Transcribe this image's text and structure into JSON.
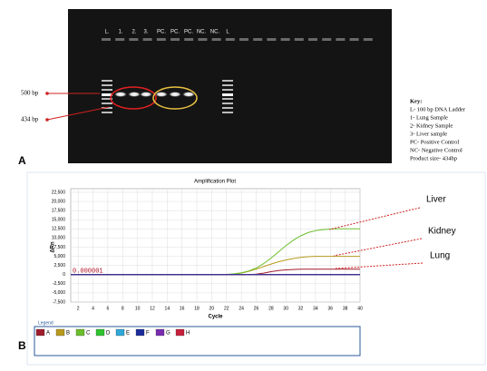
{
  "panel_a": {
    "panel_label": "A",
    "lane_labels": [
      "L.",
      "1.",
      "2.",
      "3.",
      "PC.",
      "PC.",
      "PC.",
      "NC.",
      "NC.",
      "L"
    ],
    "marker_labels": [
      "500 bp",
      "434 bp"
    ],
    "key": [
      "Key:",
      "L- 100 bp DNA Ladder",
      "1- Lung Sample",
      "2- Kidney Sample",
      "3- Liver sample",
      "PC- Positive Control",
      "NC- Negative Control",
      "Product size- 434bp"
    ]
  },
  "panel_b": {
    "panel_label": "B",
    "annotations": [
      "Liver",
      "Kidney",
      "Lung"
    ],
    "legend_title": "Legend"
  },
  "chart_data": {
    "type": "line",
    "title": "Amplification Plot",
    "x_label": "Cycle",
    "y_label": "ΔRn",
    "threshold_label": "0.000001",
    "grid": true,
    "x": [
      1,
      2,
      3,
      4,
      5,
      6,
      7,
      8,
      9,
      10,
      11,
      12,
      13,
      14,
      15,
      16,
      17,
      18,
      19,
      20,
      21,
      22,
      23,
      24,
      25,
      26,
      27,
      28,
      29,
      30,
      31,
      32,
      33,
      34,
      35,
      36,
      37,
      38,
      39,
      40
    ],
    "xlim": [
      1,
      40
    ],
    "xticks": [
      2,
      4,
      6,
      8,
      10,
      12,
      14,
      16,
      18,
      20,
      22,
      24,
      26,
      28,
      30,
      32,
      34,
      36,
      38,
      40
    ],
    "ylim": [
      -7500,
      22500
    ],
    "yticks": [
      {
        "value": -7500,
        "label": "-7,500"
      },
      {
        "value": -5000,
        "label": "-5,000"
      },
      {
        "value": -2500,
        "label": "-2,500"
      },
      0,
      {
        "value": 2500,
        "label": "2,500"
      },
      {
        "value": 5000,
        "label": "5,000"
      },
      {
        "value": 7500,
        "label": "7,500"
      },
      {
        "value": 10000,
        "label": "10,000"
      },
      {
        "value": 12500,
        "label": "12,500"
      },
      {
        "value": 15000,
        "label": "15,000"
      },
      {
        "value": 17500,
        "label": "17,500"
      },
      {
        "value": 20000,
        "label": "20,000"
      },
      {
        "value": 22500,
        "label": "22,500"
      }
    ],
    "series": [
      {
        "name": "A",
        "color": "#a01c2c",
        "values": [
          0,
          0,
          0,
          0,
          0,
          0,
          0,
          0,
          0,
          0,
          0,
          0,
          0,
          0,
          0,
          0,
          0,
          0,
          0,
          0,
          0,
          0,
          0,
          0,
          0,
          100,
          400,
          800,
          1100,
          1300,
          1400,
          1500,
          1500,
          1500,
          1500,
          1500,
          1500,
          1500,
          1500,
          1500
        ]
      },
      {
        "name": "B",
        "color": "#b89a1c",
        "values": [
          0,
          0,
          0,
          0,
          0,
          0,
          0,
          0,
          0,
          0,
          0,
          0,
          0,
          0,
          0,
          0,
          0,
          0,
          0,
          0,
          0,
          0,
          100,
          400,
          900,
          1500,
          2200,
          2900,
          3500,
          4000,
          4400,
          4700,
          4900,
          5000,
          5000,
          5000,
          5000,
          5000,
          5000,
          5000
        ]
      },
      {
        "name": "C",
        "color": "#6cbf2c",
        "values": [
          0,
          0,
          0,
          0,
          0,
          0,
          0,
          0,
          0,
          0,
          0,
          50,
          0,
          0,
          0,
          0,
          0,
          0,
          0,
          0,
          0,
          50,
          200,
          500,
          1000,
          1800,
          3000,
          4500,
          6200,
          7900,
          9400,
          10600,
          11500,
          12000,
          12300,
          12450,
          12500,
          12500,
          12500,
          12500
        ]
      },
      {
        "name": "D",
        "color": "#2ec42e",
        "values": [
          0,
          0,
          0,
          0,
          0,
          0,
          0,
          0,
          0,
          0,
          0,
          0,
          0,
          0,
          0,
          0,
          0,
          0,
          0,
          0,
          0,
          0,
          0,
          0,
          0,
          0,
          0,
          0,
          0,
          0,
          0,
          0,
          0,
          0,
          0,
          0,
          0,
          0,
          0,
          0
        ]
      },
      {
        "name": "E",
        "color": "#2ea8d8",
        "values": [
          0,
          0,
          0,
          0,
          0,
          0,
          0,
          0,
          0,
          0,
          0,
          0,
          0,
          0,
          0,
          0,
          0,
          0,
          0,
          0,
          0,
          0,
          0,
          0,
          0,
          0,
          0,
          0,
          0,
          0,
          0,
          0,
          0,
          0,
          0,
          0,
          0,
          0,
          0,
          0
        ]
      },
      {
        "name": "F",
        "color": "#1c2c9c",
        "values": [
          0,
          0,
          0,
          0,
          0,
          0,
          0,
          0,
          0,
          0,
          0,
          0,
          0,
          0,
          0,
          0,
          0,
          0,
          0,
          0,
          0,
          0,
          0,
          0,
          0,
          0,
          0,
          0,
          0,
          0,
          0,
          0,
          0,
          0,
          0,
          0,
          0,
          0,
          0,
          0
        ]
      },
      {
        "name": "G",
        "color": "#7a2cb0",
        "values": [
          0,
          0,
          0,
          0,
          0,
          0,
          0,
          0,
          0,
          0,
          0,
          0,
          0,
          0,
          0,
          0,
          0,
          0,
          0,
          0,
          0,
          0,
          0,
          0,
          0,
          0,
          0,
          0,
          0,
          0,
          0,
          0,
          0,
          0,
          0,
          0,
          0,
          0,
          0,
          0
        ]
      },
      {
        "name": "H",
        "color": "#c8203c",
        "values": [
          0,
          0,
          0,
          0,
          0,
          0,
          0,
          0,
          0,
          0,
          0,
          0,
          0,
          0,
          0,
          0,
          0,
          0,
          0,
          0,
          0,
          0,
          0,
          0,
          0,
          0,
          0,
          0,
          0,
          0,
          0,
          0,
          0,
          0,
          0,
          0,
          0,
          0,
          0,
          0
        ]
      }
    ]
  }
}
